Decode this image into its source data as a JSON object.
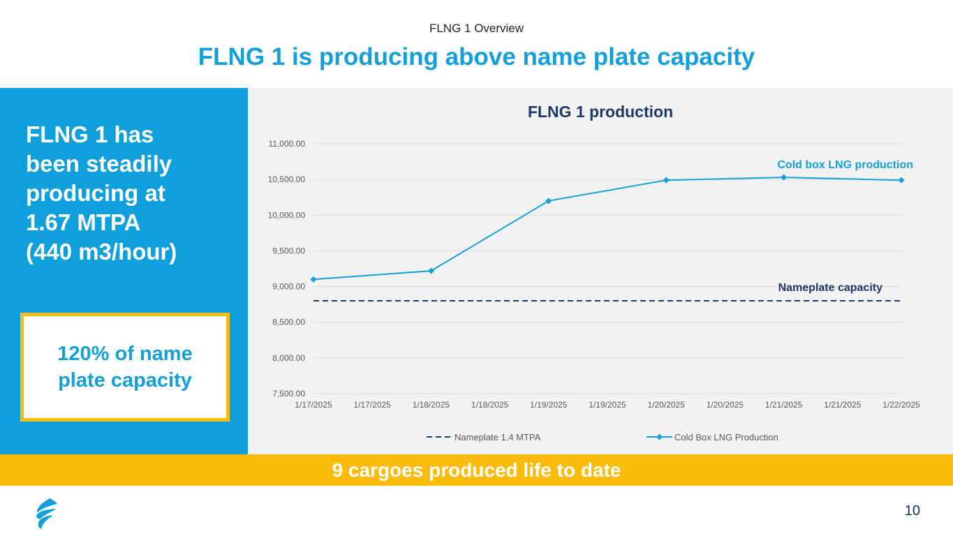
{
  "header": {
    "subtitle": "FLNG 1 Overview",
    "title": "FLNG 1 is producing above name plate capacity"
  },
  "left_panel": {
    "lines": [
      "FLNG 1 has",
      "been steadily",
      "producing at",
      "1.67 MTPA",
      "(440 m3/hour)"
    ],
    "callout_lines": [
      "120% of name",
      "plate capacity"
    ]
  },
  "banner": {
    "text": "9 cargoes produced life to date"
  },
  "footer": {
    "page_number": "10",
    "logo_icon": "flame-logo-icon"
  },
  "colors": {
    "brand_blue": "#0fa0dc",
    "accent_yellow": "#fbbb0b",
    "navy": "#1f3864",
    "series_blue": "#13a0d9"
  },
  "chart_data": {
    "type": "line",
    "title": "FLNG 1 production",
    "categories": [
      "1/17/2025",
      "1/17/2025",
      "1/18/2025",
      "1/18/2025",
      "1/19/2025",
      "1/19/2025",
      "1/20/2025",
      "1/20/2025",
      "1/21/2025",
      "1/21/2025",
      "1/22/2025"
    ],
    "y_ticks": [
      "7,500.00",
      "8,000.00",
      "8,500.00",
      "9,000.00",
      "9,500.00",
      "10,000.00",
      "10,500.00",
      "11,000.00"
    ],
    "ylim": [
      7500,
      11000
    ],
    "grid": true,
    "legend_position": "bottom",
    "series": [
      {
        "name": "Nameplate 1.4 MTPA",
        "style": "dashed",
        "color": "#1f3864",
        "values": [
          8800,
          8800,
          8800,
          8800,
          8800,
          8800,
          8800,
          8800,
          8800,
          8800,
          8800
        ]
      },
      {
        "name": "Cold Box LNG Production",
        "style": "line-diamond",
        "color": "#13a0d9",
        "values": [
          9100,
          null,
          9220,
          null,
          10200,
          null,
          10490,
          null,
          10530,
          null,
          10490
        ]
      }
    ],
    "annotations": [
      {
        "text": "Cold box LNG production",
        "color": "#13a0d9"
      },
      {
        "text": "Nameplate capacity",
        "color": "#1f3864"
      }
    ]
  }
}
